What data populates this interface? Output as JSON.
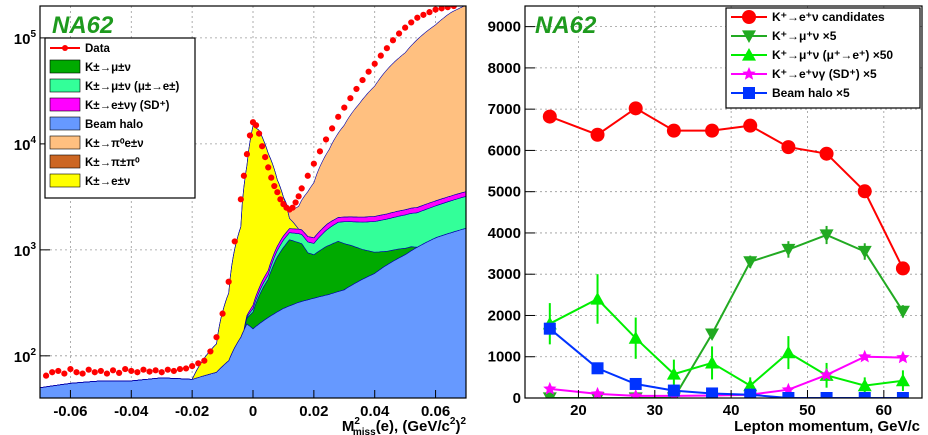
{
  "chart_data": [
    {
      "type": "area",
      "brand": "NA62",
      "xlabel": "M²miss(e), (GeV/c²)²",
      "xlabel_main": "M",
      "xlabel_sup": "2",
      "xlabel_sub": "miss",
      "xlabel_rest": "(e), (GeV/c",
      "xlabel_sup2": "2",
      "xlabel_end": ")",
      "xlabel_sup3": "2",
      "xlim": [
        -0.07,
        0.07
      ],
      "ylim": [
        40,
        200000
      ],
      "yscale": "log",
      "x_ticks": [
        "-0.06",
        "-0.04",
        "-0.02",
        "0",
        "0.02",
        "0.04",
        "0.06"
      ],
      "x_tick_values": [
        -0.06,
        -0.04,
        -0.02,
        0,
        0.02,
        0.04,
        0.06
      ],
      "y_ticks": [
        {
          "base": "10",
          "exp": "2",
          "value": 100
        },
        {
          "base": "10",
          "exp": "3",
          "value": 1000
        },
        {
          "base": "10",
          "exp": "4",
          "value": 10000
        },
        {
          "base": "10",
          "exp": "5",
          "value": 100000
        }
      ],
      "grid": true,
      "legend_position": "top-left",
      "legend": [
        {
          "label": "Data",
          "color": "#ff0000",
          "kind": "marker"
        },
        {
          "label": "K±→μ±ν",
          "color": "#00aa00",
          "kind": "fill"
        },
        {
          "label": "K±→μ±ν (μ±→e±)",
          "color": "#33ff99",
          "kind": "fill"
        },
        {
          "label": "K±→e±νγ (SD⁺)",
          "color": "#ff00ff",
          "kind": "fill"
        },
        {
          "label": "Beam halo",
          "color": "#6699ff",
          "kind": "fill"
        },
        {
          "label": "K±→π⁰e±ν",
          "color": "#ffc080",
          "kind": "fill"
        },
        {
          "label": "K±→π±π⁰",
          "color": "#cc6622",
          "kind": "fill"
        },
        {
          "label": "K±→e±ν",
          "color": "#ffff00",
          "kind": "fill"
        }
      ],
      "stack_components": [
        {
          "name": "Beam halo",
          "color": "#6699ff",
          "x": [
            -0.07,
            -0.06,
            -0.05,
            -0.04,
            -0.03,
            -0.02,
            -0.012,
            -0.008,
            -0.004,
            -0.002,
            0,
            0.005,
            0.01,
            0.015,
            0.02,
            0.025,
            0.03,
            0.04,
            0.05,
            0.055,
            0.06,
            0.07
          ],
          "y": [
            50,
            55,
            58,
            58,
            62,
            60,
            70,
            90,
            150,
            200,
            180,
            230,
            280,
            320,
            350,
            380,
            420,
            600,
            900,
            1100,
            1300,
            1600
          ]
        },
        {
          "name": "K±→μ±ν",
          "color": "#00aa00",
          "x": [
            -0.07,
            -0.003,
            -0.003,
            0,
            0.005,
            0.008,
            0.012,
            0.016,
            0.018,
            0.02,
            0.024,
            0.028,
            0.032,
            0.036,
            0.04,
            0.044,
            0.048,
            0.052,
            0.054,
            0.055,
            0.07
          ],
          "y": [
            0,
            0,
            0,
            80,
            300,
            600,
            950,
            820,
            600,
            550,
            700,
            800,
            650,
            480,
            350,
            250,
            180,
            90,
            0,
            0,
            0
          ]
        },
        {
          "name": "K±→μ±ν (μ±→e±)",
          "color": "#33ff99",
          "x": [
            -0.07,
            -0.003,
            0.005,
            0.01,
            0.015,
            0.02,
            0.025,
            0.03,
            0.04,
            0.05,
            0.06,
            0.07
          ],
          "y": [
            0,
            0,
            50,
            180,
            250,
            250,
            500,
            700,
            900,
            1100,
            1300,
            1600
          ]
        },
        {
          "name": "K±→e±νγ (SD⁺)",
          "color": "#ff00ff",
          "x": [
            -0.07,
            -0.003,
            0.005,
            0.01,
            0.015,
            0.02,
            0.025,
            0.03,
            0.04,
            0.05,
            0.06,
            0.07
          ],
          "y": [
            0,
            0,
            60,
            120,
            150,
            150,
            200,
            200,
            220,
            260,
            300,
            350
          ]
        },
        {
          "name": "K±→e±ν",
          "color": "#ffff00",
          "x": [
            -0.07,
            -0.02,
            -0.012,
            -0.008,
            -0.004,
            -0.002,
            0,
            0.002,
            0.005,
            0.008,
            0.01,
            0.012,
            0.015,
            0.07
          ],
          "y": [
            0,
            0,
            60,
            300,
            1500,
            6000,
            14500,
            13000,
            7500,
            3500,
            1800,
            400,
            0,
            0
          ]
        },
        {
          "name": "K±→π⁰e±ν",
          "color": "#ffc080",
          "x": [
            -0.07,
            0.01,
            0.012,
            0.015,
            0.02,
            0.025,
            0.03,
            0.035,
            0.04,
            0.05,
            0.06,
            0.065,
            0.07
          ],
          "y": [
            0,
            0,
            300,
            1000,
            3000,
            7000,
            13000,
            22000,
            33000,
            70000,
            130000,
            170000,
            200000
          ]
        }
      ],
      "data_points": {
        "name": "Data",
        "color": "#ff0000",
        "x": [
          -0.068,
          -0.066,
          -0.064,
          -0.062,
          -0.06,
          -0.058,
          -0.056,
          -0.054,
          -0.052,
          -0.05,
          -0.048,
          -0.046,
          -0.044,
          -0.042,
          -0.04,
          -0.038,
          -0.036,
          -0.034,
          -0.032,
          -0.03,
          -0.028,
          -0.026,
          -0.024,
          -0.022,
          -0.02,
          -0.018,
          -0.016,
          -0.014,
          -0.012,
          -0.01,
          -0.008,
          -0.006,
          -0.004,
          -0.003,
          -0.002,
          -0.001,
          0,
          0.001,
          0.002,
          0.003,
          0.004,
          0.005,
          0.006,
          0.007,
          0.008,
          0.009,
          0.01,
          0.011,
          0.012,
          0.013,
          0.014,
          0.015,
          0.016,
          0.018,
          0.02,
          0.022,
          0.024,
          0.026,
          0.028,
          0.03,
          0.032,
          0.034,
          0.036,
          0.038,
          0.04,
          0.042,
          0.044,
          0.046,
          0.048,
          0.05,
          0.052,
          0.054,
          0.056,
          0.058,
          0.06,
          0.062,
          0.064,
          0.066
        ],
        "y": [
          65,
          70,
          72,
          68,
          75,
          70,
          68,
          74,
          70,
          72,
          68,
          73,
          69,
          75,
          72,
          70,
          74,
          71,
          73,
          70,
          74,
          72,
          75,
          76,
          80,
          85,
          90,
          110,
          150,
          250,
          500,
          1200,
          3000,
          5000,
          8000,
          12000,
          16000,
          15000,
          12500,
          9500,
          7500,
          6000,
          4800,
          4000,
          3500,
          3000,
          2700,
          2500,
          2400,
          2500,
          2800,
          3200,
          3800,
          5000,
          6500,
          8500,
          11000,
          14000,
          18000,
          22000,
          27000,
          33000,
          40000,
          48000,
          57000,
          68000,
          80000,
          95000,
          110000,
          125000,
          140000,
          155000,
          165000,
          175000,
          185000,
          190000,
          195000,
          200000
        ]
      }
    },
    {
      "type": "line",
      "brand": "NA62",
      "xlabel": "Lepton momentum, GeV/c",
      "xlim": [
        13,
        65
      ],
      "ylim": [
        0,
        9500
      ],
      "x_ticks": [
        "20",
        "30",
        "40",
        "50",
        "60"
      ],
      "x_tick_values": [
        20,
        30,
        40,
        50,
        60
      ],
      "y_ticks": [
        "0",
        "1000",
        "2000",
        "3000",
        "4000",
        "5000",
        "6000",
        "7000",
        "8000",
        "9000"
      ],
      "y_tick_values": [
        0,
        1000,
        2000,
        3000,
        4000,
        5000,
        6000,
        7000,
        8000,
        9000
      ],
      "grid": true,
      "legend_position": "top-right",
      "x": [
        16.25,
        22.5,
        27.5,
        32.5,
        37.5,
        42.5,
        47.5,
        52.5,
        57.5,
        62.5
      ],
      "series": [
        {
          "name": "K⁺→e⁺ν candidates",
          "color": "#ff0000",
          "marker": "circle",
          "values": [
            6820,
            6380,
            7020,
            6480,
            6480,
            6600,
            6080,
            5920,
            5010,
            3140
          ]
        },
        {
          "name": "K⁺→μ⁺ν ×5",
          "color": "#22aa22",
          "marker": "triangle-down",
          "values": [
            0,
            0,
            0,
            0,
            1550,
            3300,
            3600,
            3950,
            3550,
            2100
          ],
          "errors": [
            0,
            0,
            0,
            0,
            100,
            150,
            200,
            220,
            200,
            150
          ]
        },
        {
          "name": "K⁺→μ⁺ν (μ⁺→e⁺) ×50",
          "color": "#00ee00",
          "marker": "triangle-up",
          "values": [
            1800,
            2400,
            1450,
            580,
            850,
            300,
            1100,
            550,
            300,
            420
          ],
          "errors": [
            500,
            600,
            500,
            350,
            400,
            200,
            400,
            300,
            200,
            250
          ]
        },
        {
          "name": "K⁺→e⁺νγ (SD⁺) ×5",
          "color": "#ff00ff",
          "marker": "star",
          "values": [
            220,
            100,
            50,
            50,
            60,
            80,
            200,
            560,
            1000,
            980
          ]
        },
        {
          "name": "Beam halo ×5",
          "color": "#0033ff",
          "marker": "square",
          "values": [
            1680,
            720,
            340,
            180,
            110,
            80,
            0,
            0,
            0,
            0
          ],
          "errors": [
            120,
            80,
            60,
            50,
            40,
            30,
            0,
            0,
            0,
            0
          ]
        }
      ]
    }
  ]
}
